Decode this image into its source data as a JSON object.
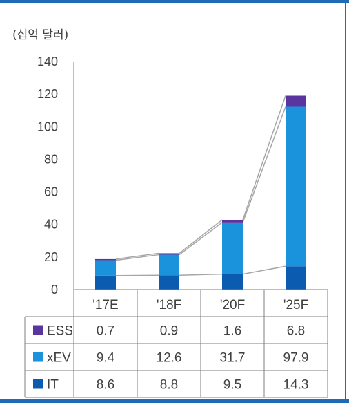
{
  "unit_label": "(십억 달러)",
  "colors": {
    "ESS": "#5a35a0",
    "xEV": "#1b93dc",
    "IT": "#0b5bb0",
    "connector": "#a6a6a6",
    "frame": "#1f6bb5",
    "axis": "#7f7f7f",
    "text": "#404040"
  },
  "chart_data": {
    "type": "bar",
    "stacked": true,
    "categories": [
      "'17E",
      "'18F",
      "'20F",
      "'25F"
    ],
    "series": [
      {
        "name": "IT",
        "values": [
          8.6,
          8.8,
          9.5,
          14.3
        ],
        "color_key": "IT"
      },
      {
        "name": "xEV",
        "values": [
          9.4,
          12.6,
          31.7,
          97.9
        ],
        "color_key": "xEV"
      },
      {
        "name": "ESS",
        "values": [
          0.7,
          0.9,
          1.6,
          6.8
        ],
        "color_key": "ESS"
      }
    ],
    "yticks": [
      0,
      20,
      40,
      60,
      80,
      100,
      120,
      140
    ],
    "ylim": [
      0,
      140
    ],
    "grid": false,
    "connector_lines": true,
    "legend": "data-table",
    "table_rows": [
      "ESS",
      "xEV",
      "IT"
    ]
  }
}
